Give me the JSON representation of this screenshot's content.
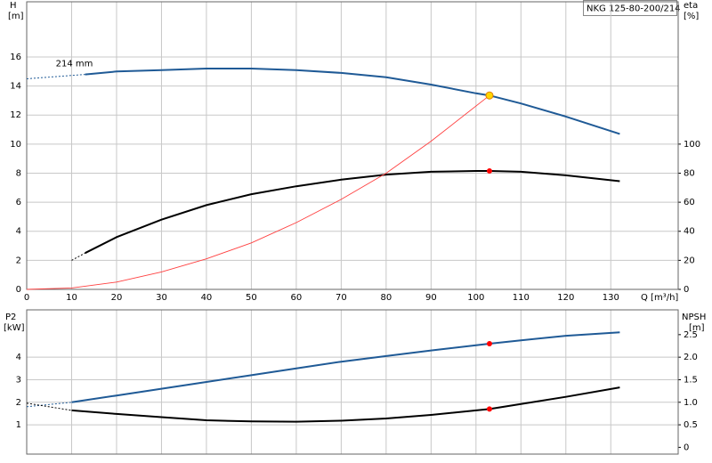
{
  "chart_data": [
    {
      "type": "line",
      "title": "NKG 125-80-200/214",
      "xlabel": "Q [m³/h]",
      "ylabel": "H",
      "yunit": "[m]",
      "y2label": "eta",
      "y2unit": "[%]",
      "xlim": [
        0,
        145
      ],
      "xticks": [
        0,
        10,
        20,
        30,
        40,
        50,
        60,
        70,
        80,
        90,
        100,
        110,
        120,
        130
      ],
      "xtick_labels": true,
      "ylim": [
        0,
        19.8
      ],
      "yticks": [
        0,
        2,
        4,
        6,
        8,
        10,
        12,
        14,
        16
      ],
      "y2lim": [
        0,
        198
      ],
      "y2ticks": [
        0,
        20,
        40,
        60,
        80,
        100
      ],
      "grid": true,
      "series": [
        {
          "x": [
            0,
            13
          ],
          "values": [
            14.5,
            14.8
          ],
          "color": "#1f5a96",
          "style": "dashed"
        },
        {
          "name": "214 mm",
          "x": [
            13,
            20,
            30,
            40,
            50,
            60,
            70,
            80,
            90,
            100,
            103,
            110,
            120,
            132
          ],
          "values": [
            14.8,
            15.0,
            15.1,
            15.2,
            15.2,
            15.1,
            14.9,
            14.6,
            14.1,
            13.5,
            13.35,
            12.8,
            11.9,
            10.7
          ],
          "color": "#1f5a96",
          "style": "solid"
        },
        {
          "x": [
            10,
            13
          ],
          "values": [
            20,
            25
          ],
          "color": "#000000",
          "style": "dashed",
          "axis": "y2"
        },
        {
          "x": [
            13,
            20,
            30,
            40,
            50,
            60,
            70,
            80,
            90,
            100,
            103,
            110,
            120,
            132
          ],
          "values": [
            25,
            36,
            48,
            58,
            65.5,
            71,
            75.5,
            79,
            81,
            81.5,
            81.5,
            81,
            78.5,
            74.5
          ],
          "color": "#000000",
          "style": "solid",
          "axis": "y2"
        },
        {
          "x": [
            0,
            10,
            20,
            30,
            40,
            50,
            60,
            70,
            80,
            90,
            103
          ],
          "values": [
            0,
            0.1,
            0.5,
            1.2,
            2.1,
            3.2,
            4.6,
            6.2,
            8.0,
            10.2,
            13.35
          ],
          "color": "#ff4040",
          "style": "thin"
        }
      ],
      "points": [
        {
          "x": 103,
          "y": 13.35,
          "color": "#ffd700"
        },
        {
          "x": 103,
          "y": 81.5,
          "color": "#ff0000",
          "axis": "y2"
        }
      ]
    },
    {
      "type": "line",
      "ylabel": "P2",
      "yunit": "[kW]",
      "y2label": "NPSH",
      "y2unit": "[m]",
      "xlim": [
        0,
        145
      ],
      "xticks": [
        0,
        10,
        20,
        30,
        40,
        50,
        60,
        70,
        80,
        90,
        100,
        110,
        120,
        130
      ],
      "xtick_labels": false,
      "ylim": [
        -0.3,
        6.1
      ],
      "yticks": [
        1,
        2,
        3,
        4
      ],
      "y2lim": [
        -0.15,
        3.05
      ],
      "y2ticks": [
        0,
        0.5,
        {
          "value": 1,
          "label": "1.0"
        },
        1.5,
        {
          "value": 2,
          "label": "2.0"
        },
        2.5
      ],
      "grid": true,
      "series": [
        {
          "x": [
            0,
            10
          ],
          "values": [
            1.8,
            2.0
          ],
          "color": "#1f5a96",
          "style": "dashed"
        },
        {
          "x": [
            10,
            20,
            30,
            40,
            50,
            60,
            70,
            80,
            90,
            103,
            110,
            120,
            132
          ],
          "values": [
            2.0,
            2.3,
            2.6,
            2.9,
            3.2,
            3.5,
            3.8,
            4.05,
            4.3,
            4.6,
            4.75,
            4.95,
            5.1
          ],
          "color": "#1f5a96",
          "style": "solid"
        },
        {
          "x": [
            0,
            10
          ],
          "values": [
            0.98,
            0.82
          ],
          "color": "#000000",
          "style": "dashed",
          "axis": "y2"
        },
        {
          "x": [
            10,
            20,
            30,
            40,
            50,
            60,
            70,
            80,
            90,
            103,
            110,
            120,
            132
          ],
          "values": [
            0.82,
            0.74,
            0.67,
            0.6,
            0.575,
            0.57,
            0.59,
            0.64,
            0.72,
            0.85,
            0.96,
            1.12,
            1.33
          ],
          "color": "#000000",
          "style": "solid",
          "axis": "y2"
        }
      ],
      "points": [
        {
          "x": 103,
          "y": 4.6,
          "color": "#ff0000"
        },
        {
          "x": 103,
          "y": 0.85,
          "color": "#ff0000",
          "axis": "y2"
        }
      ]
    }
  ]
}
